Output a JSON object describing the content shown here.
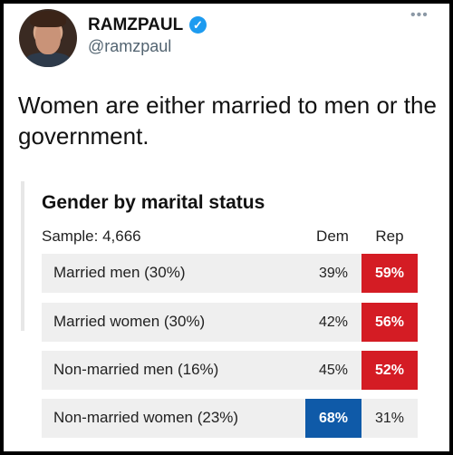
{
  "tweet": {
    "display_name": "RAMZPAUL",
    "handle": "@ramzpaul",
    "verified_icon": "verified-badge-icon",
    "more_icon": "more-options-icon",
    "text": "Women are either married to men or the government."
  },
  "card": {
    "title": "Gender by marital status",
    "sample": "Sample: 4,666",
    "col_dem": "Dem",
    "col_rep": "Rep",
    "colors": {
      "dem_winner": "#0f5aa8",
      "rep_winner": "#d41c24",
      "row_bg": "#efefef"
    },
    "rows": [
      {
        "label": "Married men (30%)",
        "dem": "39%",
        "rep": "59%",
        "winner": "rep"
      },
      {
        "label": "Married women (30%)",
        "dem": "42%",
        "rep": "56%",
        "winner": "rep"
      },
      {
        "label": "Non-married men (16%)",
        "dem": "45%",
        "rep": "52%",
        "winner": "rep"
      },
      {
        "label": "Non-married women (23%)",
        "dem": "68%",
        "rep": "31%",
        "winner": "dem"
      }
    ]
  }
}
